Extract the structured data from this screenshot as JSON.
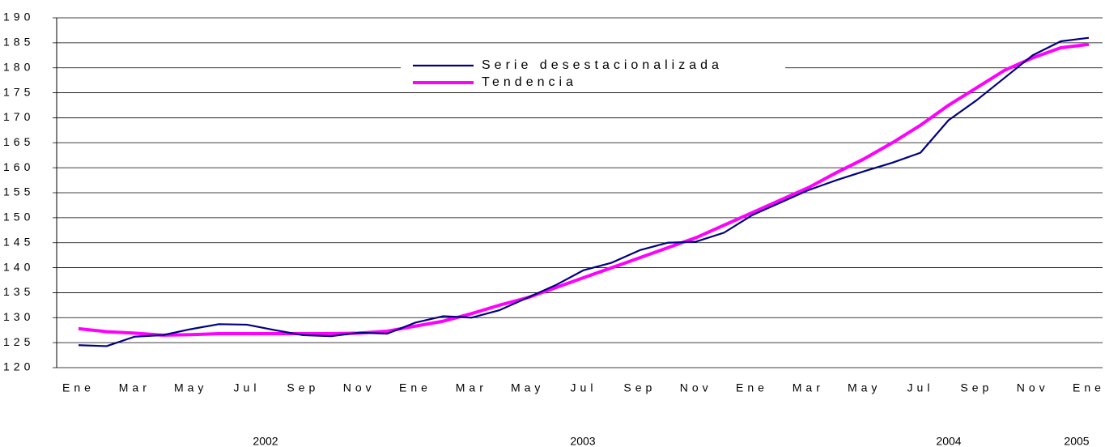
{
  "chart_data": {
    "type": "line",
    "categories": [
      "Ene",
      null,
      "Mar",
      null,
      "May",
      null,
      "Jul",
      null,
      "Sep",
      null,
      "Nov",
      null,
      "Ene",
      null,
      "Mar",
      null,
      "May",
      null,
      "Jul",
      null,
      "Sep",
      null,
      "Nov",
      null,
      "Ene",
      null,
      "Mar",
      null,
      "May",
      null,
      "Jul",
      null,
      "Sep",
      null,
      "Nov",
      null,
      "Ene"
    ],
    "annotations": [
      "2002",
      "2003",
      "2004",
      "2005"
    ],
    "series": [
      {
        "name": "Serie desestacionalizada",
        "color": "#000080",
        "values": [
          124.5,
          124.3,
          126.2,
          126.5,
          127.7,
          128.7,
          128.6,
          127.5,
          126.5,
          126.3,
          127,
          126.8,
          129,
          130.3,
          130,
          131.5,
          134,
          136.5,
          139.5,
          141,
          143.5,
          145,
          145.2,
          147,
          150.5,
          153,
          155.5,
          157.5,
          159.3,
          161,
          163,
          169.5,
          173.5,
          178,
          182.5,
          185.3,
          186
        ]
      },
      {
        "name": "Tendencia",
        "color": "#ff00ff",
        "values": [
          127.8,
          127.2,
          126.9,
          126.5,
          126.6,
          126.8,
          126.8,
          126.8,
          126.8,
          126.8,
          126.9,
          127.3,
          128.3,
          129.3,
          130.8,
          132.5,
          134,
          136,
          138,
          140,
          142,
          144,
          146,
          148.5,
          151,
          153.5,
          156,
          159,
          161.8,
          165,
          168.5,
          172.5,
          176,
          179.5,
          182,
          184,
          184.7
        ]
      }
    ],
    "ylim": [
      120,
      190
    ],
    "yticks": [
      120,
      125,
      130,
      135,
      140,
      145,
      150,
      155,
      160,
      165,
      170,
      175,
      180,
      185,
      190
    ],
    "grid": true
  }
}
